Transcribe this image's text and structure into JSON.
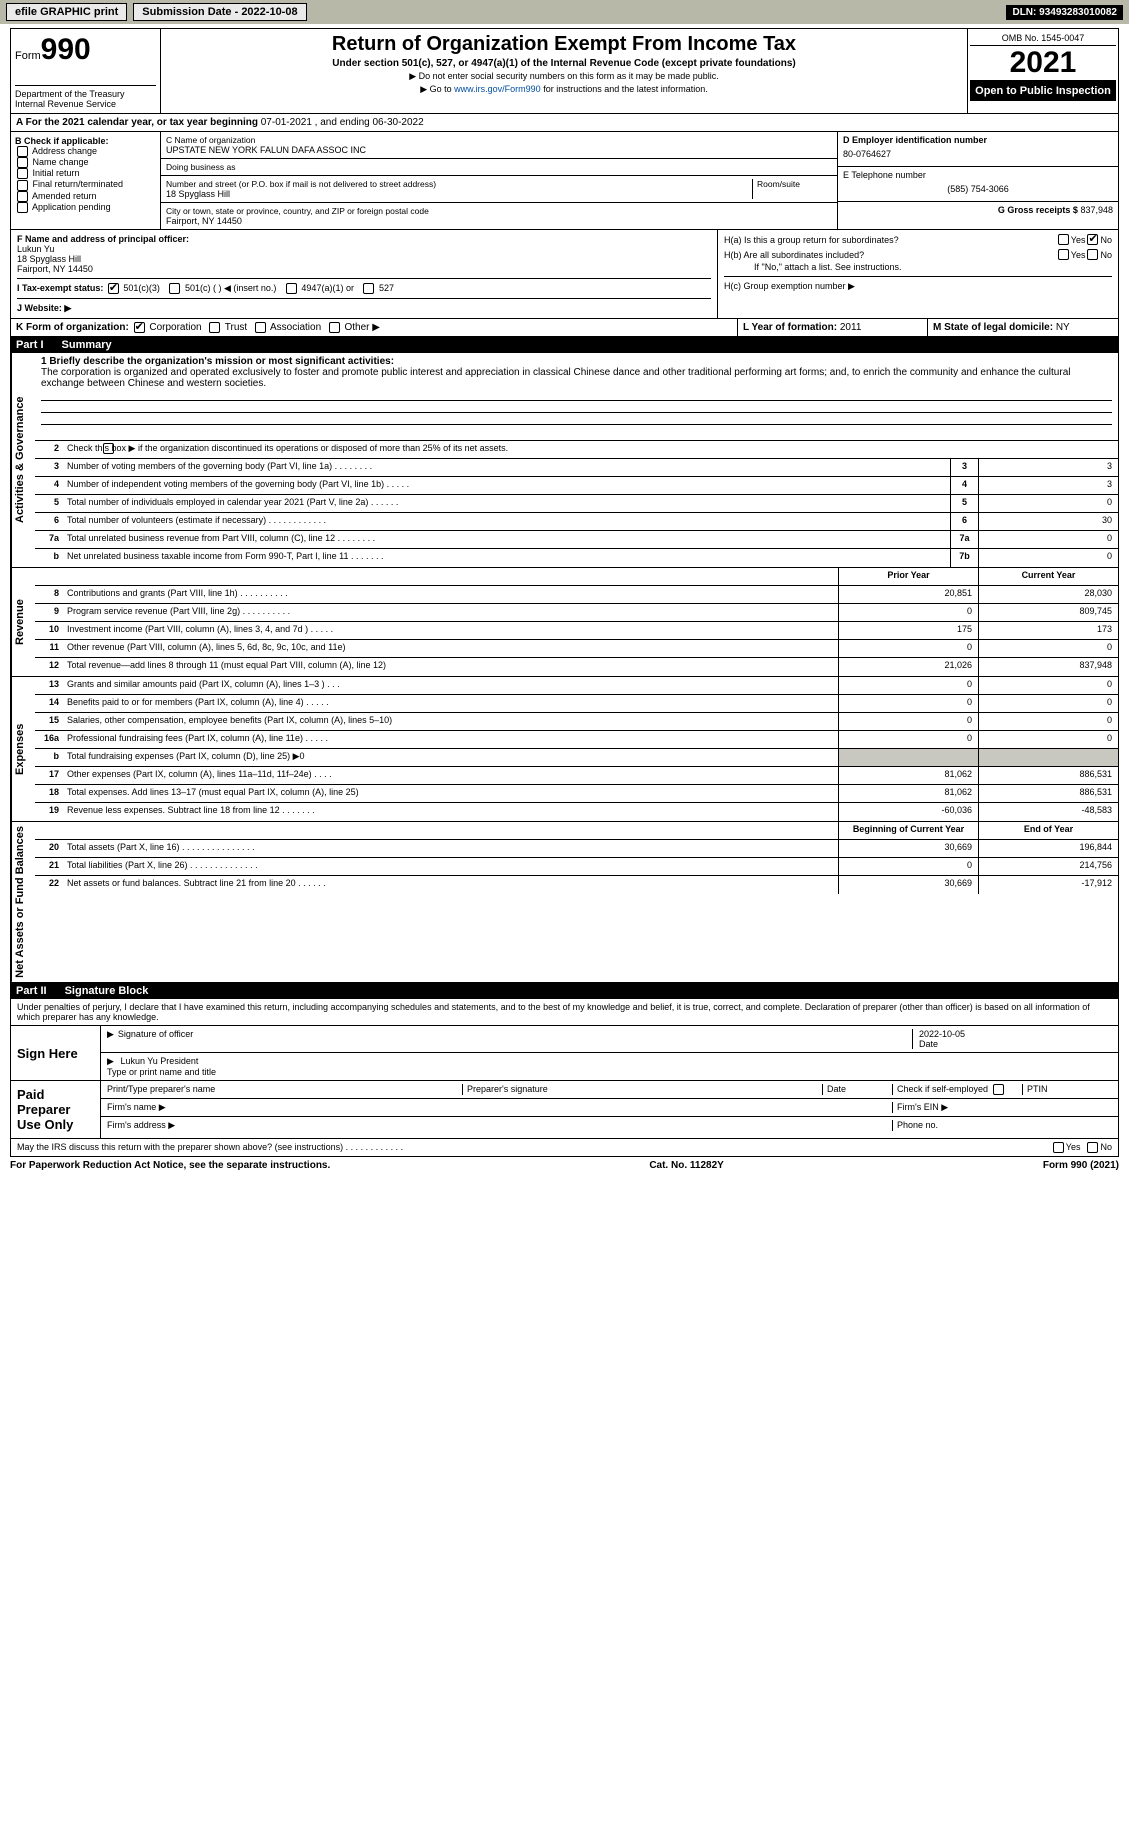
{
  "topbar": {
    "efile": "efile GRAPHIC print",
    "subdate_label": "Submission Date - 2022-10-08",
    "dln_label": "DLN: 93493283010082"
  },
  "header": {
    "form_word": "Form",
    "form_num": "990",
    "title": "Return of Organization Exempt From Income Tax",
    "sub1": "Under section 501(c), 527, or 4947(a)(1) of the Internal Revenue Code (except private foundations)",
    "sub2": "▶ Do not enter social security numbers on this form as it may be made public.",
    "sub3_pre": "▶ Go to ",
    "sub3_link": "www.irs.gov/Form990",
    "sub3_post": " for instructions and the latest information.",
    "dept": "Department of the Treasury",
    "irs": "Internal Revenue Service",
    "omb": "OMB No. 1545-0047",
    "year": "2021",
    "openpub": "Open to Public Inspection"
  },
  "row_a": {
    "text_pre": "A For the 2021 calendar year, or tax year beginning ",
    "begin": "07-01-2021",
    "mid": " , and ending ",
    "end": "06-30-2022"
  },
  "col_b": {
    "title": "B Check if applicable:",
    "opts": [
      "Address change",
      "Name change",
      "Initial return",
      "Final return/terminated",
      "Amended return",
      "Application pending"
    ]
  },
  "col_c": {
    "name_label": "C Name of organization",
    "name": "UPSTATE NEW YORK FALUN DAFA ASSOC INC",
    "dba_label": "Doing business as",
    "dba": "",
    "street_label": "Number and street (or P.O. box if mail is not delivered to street address)",
    "room_label": "Room/suite",
    "street": "18 Spyglass Hill",
    "city_label": "City or town, state or province, country, and ZIP or foreign postal code",
    "city": "Fairport, NY  14450"
  },
  "col_de": {
    "d_label": "D Employer identification number",
    "d_val": "80-0764627",
    "e_label": "E Telephone number",
    "e_val": "(585) 754-3066",
    "g_label": "G Gross receipts $",
    "g_val": "837,948"
  },
  "fjk": {
    "f_label": "F Name and address of principal officer:",
    "f_name": "Lukun Yu",
    "f_addr1": "18 Spyglass Hill",
    "f_addr2": "Fairport, NY  14450",
    "i_label": "I Tax-exempt status:",
    "i_501c3": "501(c)(3)",
    "i_501c": "501(c) (   ) ◀ (insert no.)",
    "i_4947": "4947(a)(1) or",
    "i_527": "527",
    "j_label": "J Website: ▶",
    "h1a": "H(a)  Is this a group return for subordinates?",
    "h1b": "H(b)  Are all subordinates included?",
    "h1b_note": "If \"No,\" attach a list. See instructions.",
    "h1c": "H(c)  Group exemption number ▶",
    "yes": "Yes",
    "no": "No"
  },
  "row_k": {
    "k_label": "K Form of organization:",
    "opts": [
      "Corporation",
      "Trust",
      "Association",
      "Other ▶"
    ],
    "l_label": "L Year of formation:",
    "l_val": "2011",
    "m_label": "M State of legal domicile:",
    "m_val": "NY"
  },
  "part1": {
    "num": "Part I",
    "title": "Summary"
  },
  "summary": {
    "line1_label": "1  Briefly describe the organization's mission or most significant activities:",
    "line1_text": "The corporation is organized and operated exclusively to foster and promote public interest and appreciation in classical Chinese dance and other traditional performing art forms; and, to enrich the community and enhance the cultural exchange between Chinese and western societies.",
    "line2": "Check this box ▶       if the organization discontinued its operations or disposed of more than 25% of its net assets.",
    "rows_ag": [
      {
        "n": "3",
        "t": "Number of voting members of the governing body (Part VI, line 1a)   .    .    .    .    .    .    .    .",
        "k": "3",
        "v": "3"
      },
      {
        "n": "4",
        "t": "Number of independent voting members of the governing body (Part VI, line 1b)   .    .    .    .    .",
        "k": "4",
        "v": "3"
      },
      {
        "n": "5",
        "t": "Total number of individuals employed in calendar year 2021 (Part V, line 2a)   .    .    .    .    .    .",
        "k": "5",
        "v": "0"
      },
      {
        "n": "6",
        "t": "Total number of volunteers (estimate if necessary)   .    .    .    .    .    .    .    .    .    .    .    .",
        "k": "6",
        "v": "30"
      },
      {
        "n": "7a",
        "t": "Total unrelated business revenue from Part VIII, column (C), line 12   .    .    .    .    .    .    .    .",
        "k": "7a",
        "v": "0"
      },
      {
        "n": "b",
        "t": "Net unrelated business taxable income from Form 990-T, Part I, line 11   .    .    .    .    .    .    .",
        "k": "7b",
        "v": "0"
      }
    ],
    "col_prior": "Prior Year",
    "col_current": "Current Year",
    "rows_rev": [
      {
        "n": "8",
        "t": "Contributions and grants (Part VIII, line 1h)   .    .    .    .    .    .    .    .    .    .",
        "p": "20,851",
        "c": "28,030"
      },
      {
        "n": "9",
        "t": "Program service revenue (Part VIII, line 2g)   .    .    .    .    .    .    .    .    .    .",
        "p": "0",
        "c": "809,745"
      },
      {
        "n": "10",
        "t": "Investment income (Part VIII, column (A), lines 3, 4, and 7d )   .    .    .    .    .",
        "p": "175",
        "c": "173"
      },
      {
        "n": "11",
        "t": "Other revenue (Part VIII, column (A), lines 5, 6d, 8c, 9c, 10c, and 11e)",
        "p": "0",
        "c": "0"
      },
      {
        "n": "12",
        "t": "Total revenue—add lines 8 through 11 (must equal Part VIII, column (A), line 12)",
        "p": "21,026",
        "c": "837,948"
      }
    ],
    "rows_exp": [
      {
        "n": "13",
        "t": "Grants and similar amounts paid (Part IX, column (A), lines 1–3 )   .    .    .",
        "p": "0",
        "c": "0"
      },
      {
        "n": "14",
        "t": "Benefits paid to or for members (Part IX, column (A), line 4)   .    .    .    .    .",
        "p": "0",
        "c": "0"
      },
      {
        "n": "15",
        "t": "Salaries, other compensation, employee benefits (Part IX, column (A), lines 5–10)",
        "p": "0",
        "c": "0"
      },
      {
        "n": "16a",
        "t": "Professional fundraising fees (Part IX, column (A), line 11e)   .    .    .    .    .",
        "p": "0",
        "c": "0"
      },
      {
        "n": "b",
        "t": "Total fundraising expenses (Part IX, column (D), line 25) ▶0",
        "p": "",
        "c": "",
        "shade": true
      },
      {
        "n": "17",
        "t": "Other expenses (Part IX, column (A), lines 11a–11d, 11f–24e)   .    .    .    .",
        "p": "81,062",
        "c": "886,531"
      },
      {
        "n": "18",
        "t": "Total expenses. Add lines 13–17 (must equal Part IX, column (A), line 25)",
        "p": "81,062",
        "c": "886,531"
      },
      {
        "n": "19",
        "t": "Revenue less expenses. Subtract line 18 from line 12   .    .    .    .    .    .    .",
        "p": "-60,036",
        "c": "-48,583"
      }
    ],
    "col_begin": "Beginning of Current Year",
    "col_end": "End of Year",
    "rows_net": [
      {
        "n": "20",
        "t": "Total assets (Part X, line 16)   .    .    .    .    .    .    .    .    .    .    .    .    .    .    .",
        "p": "30,669",
        "c": "196,844"
      },
      {
        "n": "21",
        "t": "Total liabilities (Part X, line 26)   .    .    .    .    .    .    .    .    .    .    .    .    .    .",
        "p": "0",
        "c": "214,756"
      },
      {
        "n": "22",
        "t": "Net assets or fund balances. Subtract line 21 from line 20   .    .    .    .    .    .",
        "p": "30,669",
        "c": "-17,912"
      }
    ],
    "vlabels": {
      "ag": "Activities & Governance",
      "rev": "Revenue",
      "exp": "Expenses",
      "net": "Net Assets or Fund Balances"
    }
  },
  "part2": {
    "num": "Part II",
    "title": "Signature Block"
  },
  "sig": {
    "declare": "Under penalties of perjury, I declare that I have examined this return, including accompanying schedules and statements, and to the best of my knowledge and belief, it is true, correct, and complete. Declaration of preparer (other than officer) is based on all information of which preparer has any knowledge.",
    "sign_here": "Sign Here",
    "sig_officer": "Signature of officer",
    "date": "Date",
    "date_val": "2022-10-05",
    "name_title": "Lukun Yu  President",
    "name_title_label": "Type or print name and title",
    "paid": "Paid Preparer Use Only",
    "pt_name": "Print/Type preparer's name",
    "pt_sig": "Preparer's signature",
    "pt_date": "Date",
    "pt_check": "Check        if self-employed",
    "pt_ptin": "PTIN",
    "firm_name": "Firm's name   ▶",
    "firm_ein": "Firm's EIN ▶",
    "firm_addr": "Firm's address ▶",
    "firm_phone": "Phone no.",
    "may_irs": "May the IRS discuss this return with the preparer shown above? (see instructions)   .    .    .    .    .    .    .    .    .    .    .    ."
  },
  "foot": {
    "left": "For Paperwork Reduction Act Notice, see the separate instructions.",
    "mid": "Cat. No. 11282Y",
    "right": "Form 990 (2021)"
  }
}
